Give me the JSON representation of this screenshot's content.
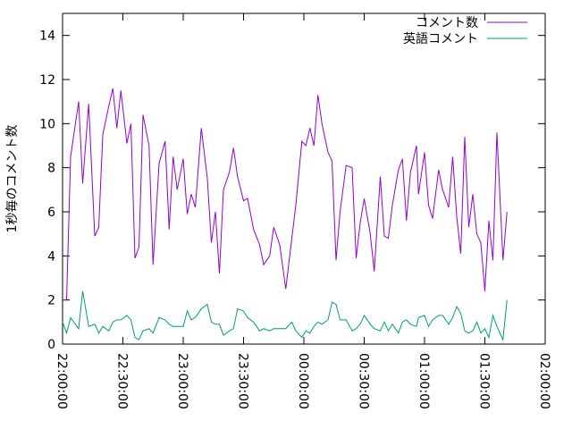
{
  "chart_data": {
    "type": "line",
    "y_label": "1秒毎のコメント数",
    "x": [
      "22:00:00",
      "22:02:00",
      "22:04:00",
      "22:08:00",
      "22:10:00",
      "22:13:00",
      "22:16:00",
      "22:18:00",
      "22:20:00",
      "22:23:00",
      "22:25:00",
      "22:27:00",
      "22:29:00",
      "22:32:00",
      "22:34:00",
      "22:36:00",
      "22:38:00",
      "22:40:00",
      "22:43:00",
      "22:45:00",
      "22:48:00",
      "22:51:00",
      "22:53:00",
      "22:55:00",
      "22:57:00",
      "23:00:00",
      "23:02:00",
      "23:04:00",
      "23:06:00",
      "23:09:00",
      "23:12:00",
      "23:14:00",
      "23:16:00",
      "23:18:00",
      "23:20:00",
      "23:23:00",
      "23:25:00",
      "23:27:00",
      "23:30:00",
      "23:32:00",
      "23:35:00",
      "23:38:00",
      "23:40:00",
      "23:43:00",
      "23:45:00",
      "23:48:00",
      "23:51:00",
      "23:54:00",
      "23:56:00",
      "23:59:00",
      "00:01:00",
      "00:03:00",
      "00:05:00",
      "00:07:00",
      "00:09:00",
      "00:12:00",
      "00:14:00",
      "00:16:00",
      "00:18:00",
      "00:21:00",
      "00:24:00",
      "00:26:00",
      "00:28:00",
      "00:30:00",
      "00:33:00",
      "00:35:00",
      "00:38:00",
      "00:40:00",
      "00:42:00",
      "00:44:00",
      "00:47:00",
      "00:49:00",
      "00:51:00",
      "00:53:00",
      "00:56:00",
      "00:57:00",
      "01:00:00",
      "01:02:00",
      "01:04:00",
      "01:07:00",
      "01:09:00",
      "01:12:00",
      "01:14:00",
      "01:16:00",
      "01:18:00",
      "01:20:00",
      "01:22:00",
      "01:24:00",
      "01:26:00",
      "01:28:00",
      "01:30:00",
      "01:32:00",
      "01:34:00",
      "01:36:00",
      "01:39:00",
      "01:41:00"
    ],
    "series": [
      {
        "name": "コメント数",
        "color": "#9400d3",
        "values": [
          2,
          2,
          8.5,
          11,
          7.3,
          10.9,
          4.9,
          5.3,
          9.5,
          10.8,
          11.6,
          9.8,
          11.5,
          9.1,
          10,
          3.9,
          4.4,
          10.4,
          9,
          3.6,
          8.2,
          9.2,
          5.2,
          8.5,
          7,
          8.4,
          5.9,
          6.8,
          6.2,
          9.8,
          7.5,
          4.6,
          6,
          3.2,
          7,
          7.8,
          8.9,
          7.6,
          6.5,
          6.6,
          5.2,
          4.5,
          3.6,
          4,
          5.3,
          4.5,
          2.5,
          4.8,
          6.3,
          9.2,
          9,
          9.8,
          9,
          11.3,
          10,
          8.7,
          8.3,
          3.8,
          6,
          8.1,
          8,
          3.9,
          5.5,
          6.6,
          5,
          3.3,
          7.6,
          4.9,
          4.8,
          6.3,
          7.9,
          8.4,
          5.6,
          7.8,
          9,
          6.8,
          8.7,
          6.3,
          5.7,
          7.9,
          7,
          6.2,
          8.5,
          5.8,
          4.1,
          9.4,
          5.3,
          6.8,
          5,
          4.6,
          2.4,
          5.6,
          3.8,
          9.6,
          3.8,
          6
        ]
      },
      {
        "name": "英語コメント",
        "color": "#009e73",
        "values": [
          1.0,
          0.5,
          1.2,
          0.7,
          2.4,
          0.8,
          0.9,
          0.5,
          0.8,
          0.6,
          1.0,
          1.1,
          1.1,
          1.3,
          1.1,
          0.3,
          0.2,
          0.6,
          0.7,
          0.5,
          1.2,
          1.1,
          0.9,
          0.8,
          0.8,
          0.8,
          1.5,
          1.1,
          1.2,
          1.6,
          1.8,
          1.0,
          0.9,
          0.9,
          0.4,
          0.6,
          0.7,
          1.6,
          1.5,
          1.2,
          1.0,
          0.6,
          0.7,
          0.6,
          0.7,
          0.7,
          0.7,
          1.0,
          0.6,
          0.3,
          0.6,
          0.5,
          0.8,
          1.0,
          0.9,
          1.1,
          1.9,
          1.8,
          1.1,
          1.1,
          0.6,
          0.7,
          0.9,
          1.3,
          0.9,
          0.7,
          0.6,
          1.0,
          0.6,
          0.9,
          0.5,
          1.0,
          1.1,
          0.9,
          0.8,
          1.2,
          1.3,
          0.8,
          1.1,
          1.3,
          1.3,
          0.9,
          1.2,
          1.7,
          1.4,
          0.6,
          0.5,
          0.6,
          1.0,
          0.5,
          0.7,
          0.3,
          1.3,
          0.8,
          0.2,
          2.0
        ]
      }
    ],
    "xlim": [
      "22:00:00",
      "02:00:00"
    ],
    "xticks": [
      "22:00:00",
      "22:30:00",
      "23:00:00",
      "23:30:00",
      "00:00:00",
      "00:30:00",
      "01:00:00",
      "01:30:00",
      "02:00:00"
    ],
    "ylim": [
      0,
      15
    ],
    "yticks": [
      0,
      2,
      4,
      6,
      8,
      10,
      12,
      14
    ],
    "legend": "upper right"
  }
}
